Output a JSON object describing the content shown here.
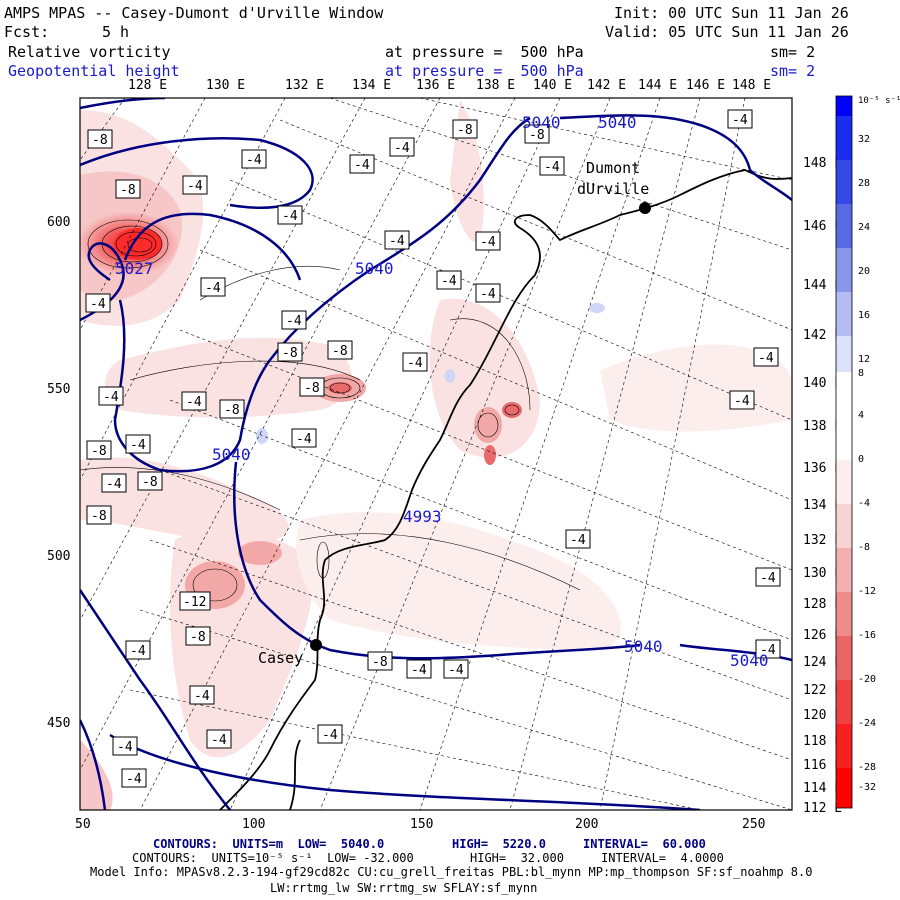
{
  "header": {
    "title": "AMPS MPAS -- Casey-Dumont d'Urville Window",
    "init": "Init: 00 UTC Sun 11 Jan 26",
    "forecast_label": "Fcst:",
    "forecast_hours": "5 h",
    "valid": "Valid: 05 UTC Sun 11 Jan 26",
    "field1": {
      "name": "Relative vorticity",
      "level": "at pressure =  500 hPa",
      "smooth": "sm= 2"
    },
    "field2": {
      "name": "Geopotential height",
      "level": "at pressure =  500 hPa",
      "smooth": "sm= 2"
    }
  },
  "colors": {
    "height_contour": "#000080",
    "coastline": "#000000",
    "frame": "#000000",
    "colorbar_red": "#ff0000",
    "colorbar_blue": "#0000ff"
  },
  "axes": {
    "top_longitudes": [
      "128 E",
      "130 E",
      "132 E",
      "134 E",
      "136 E",
      "138 E",
      "140 E",
      "142 E",
      "144 E",
      "146 E",
      "148 E"
    ],
    "right_latitudes": [
      "148 E",
      "146 E",
      "144 E",
      "142 E",
      "140 E",
      "138 E",
      "136 E",
      "134 E",
      "132 E",
      "130 E",
      "128 E",
      "126 E",
      "124 E",
      "122 E",
      "120 E",
      "118 E",
      "116 E",
      "114 E",
      "112 E"
    ],
    "x_ticks": [
      "50",
      "100",
      "150",
      "200",
      "250"
    ],
    "y_ticks": [
      "600",
      "550",
      "500",
      "450"
    ]
  },
  "colorbar": {
    "unit": "10⁻⁵ s⁻¹",
    "labels": [
      "32",
      "28",
      "24",
      "20",
      "16",
      "12",
      "8",
      "4",
      "0",
      "-4",
      "-8",
      "-12",
      "-16",
      "-20",
      "-24",
      "-28",
      "-32"
    ]
  },
  "stations": [
    {
      "name_line1": "Dumont",
      "name_line2": "dUrville"
    },
    {
      "name_line1": "Casey",
      "name_line2": ""
    }
  ],
  "height_labels": [
    "5040",
    "5040",
    "5040",
    "5040",
    "5040",
    "5040",
    "5040",
    "4993",
    "5027"
  ],
  "vort_box_labels": [
    "-8",
    "-4",
    "-12"
  ],
  "footer": {
    "line1": {
      "contours": "CONTOURS:  UNITS=m  LOW=  5040.0",
      "high": "HIGH=  5220.0",
      "interval": "INTERVAL=  60.000"
    },
    "line2": {
      "contours": "CONTOURS:  UNITS=10⁻⁵ s⁻¹  LOW= -32.000",
      "high": "HIGH=  32.000",
      "interval": "INTERVAL=  4.0000"
    },
    "line3": "Model Info: MPASv8.2.3-194-gf29cd82c CU:cu_grell_freitas PBL:bl_mynn MP:mp_thompson SF:sf_noahmp 8.0",
    "line4": "LW:rrtmg_lw SW:rrtmg_sw SFLAY:sf_mynn"
  }
}
